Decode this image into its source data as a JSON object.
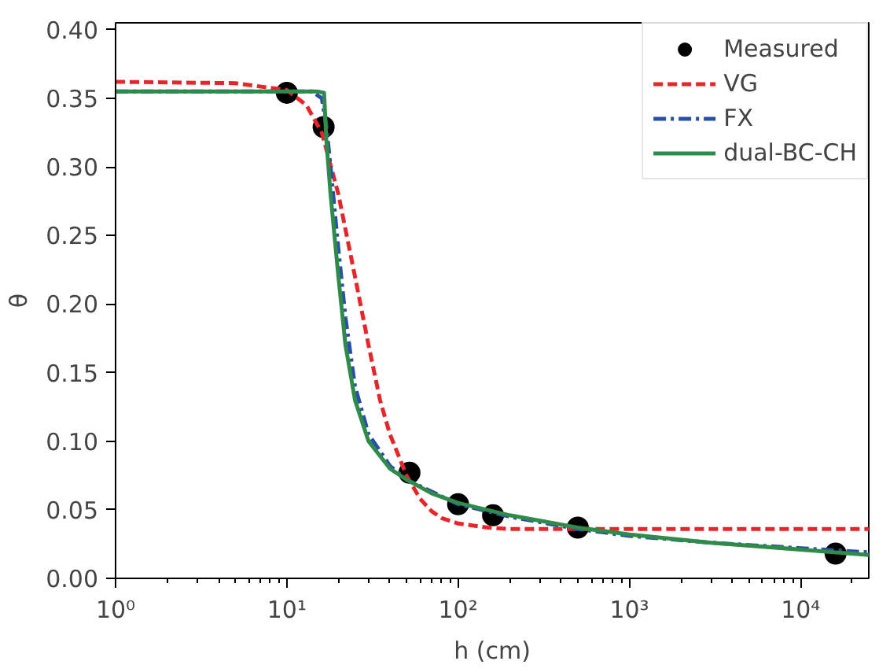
{
  "chart_data": {
    "type": "line",
    "xlabel": "h (cm)",
    "ylabel": "θ",
    "log": "x",
    "grid": false,
    "legend": "top right",
    "xlim": [
      1,
      25000
    ],
    "ylim": [
      0,
      0.405
    ],
    "xticks": [
      {
        "value": 1,
        "label": "10⁰"
      },
      {
        "value": 10,
        "label": "10¹"
      },
      {
        "value": 100,
        "label": "10²"
      },
      {
        "value": 1000,
        "label": "10³"
      },
      {
        "value": 10000,
        "label": "10⁴"
      }
    ],
    "yticks": [
      {
        "value": 0,
        "label": "0.00"
      },
      {
        "value": 0.05,
        "label": "0.05"
      },
      {
        "value": 0.1,
        "label": "0.10"
      },
      {
        "value": 0.15,
        "label": "0.15"
      },
      {
        "value": 0.2,
        "label": "0.20"
      },
      {
        "value": 0.25,
        "label": "0.25"
      },
      {
        "value": 0.3,
        "label": "0.30"
      },
      {
        "value": 0.35,
        "label": "0.35"
      },
      {
        "value": 0.4,
        "label": "0.40"
      }
    ],
    "series": [
      {
        "name": "Measured",
        "type": "scatter",
        "marker": "circle",
        "color": "#000000",
        "x": [
          10,
          16.4,
          52,
          100,
          160,
          500,
          16000
        ],
        "values": [
          0.354,
          0.329,
          0.077,
          0.054,
          0.046,
          0.037,
          0.018
        ]
      },
      {
        "name": "VG",
        "line_style": "dashed",
        "color": "#e8262a",
        "x": [
          1,
          5,
          10,
          13,
          16,
          20,
          25,
          30,
          35,
          40,
          50,
          60,
          70,
          80,
          100,
          150,
          200,
          500,
          1000,
          25000
        ],
        "values": [
          0.362,
          0.361,
          0.356,
          0.345,
          0.325,
          0.28,
          0.22,
          0.17,
          0.13,
          0.105,
          0.075,
          0.058,
          0.049,
          0.044,
          0.04,
          0.037,
          0.036,
          0.036,
          0.036,
          0.036
        ]
      },
      {
        "name": "FX",
        "line_style": "dashdot",
        "color": "#2a4fa8",
        "x": [
          1,
          14,
          16,
          17,
          18,
          20,
          22,
          25,
          30,
          40,
          50,
          100,
          200,
          500,
          1000,
          3000,
          10000,
          25000
        ],
        "values": [
          0.355,
          0.355,
          0.35,
          0.33,
          0.3,
          0.24,
          0.19,
          0.14,
          0.105,
          0.082,
          0.072,
          0.054,
          0.045,
          0.036,
          0.031,
          0.026,
          0.022,
          0.019
        ]
      },
      {
        "name": "dual-BC-CH",
        "line_style": "solid",
        "color": "#2e8b4a",
        "x": [
          1,
          15,
          16.5,
          17,
          18,
          20,
          22,
          25,
          30,
          40,
          50,
          70,
          100,
          200,
          500,
          1000,
          3000,
          10000,
          25000
        ],
        "values": [
          0.355,
          0.355,
          0.354,
          0.32,
          0.28,
          0.22,
          0.17,
          0.13,
          0.1,
          0.08,
          0.072,
          0.062,
          0.055,
          0.046,
          0.037,
          0.032,
          0.026,
          0.021,
          0.017
        ]
      }
    ]
  }
}
